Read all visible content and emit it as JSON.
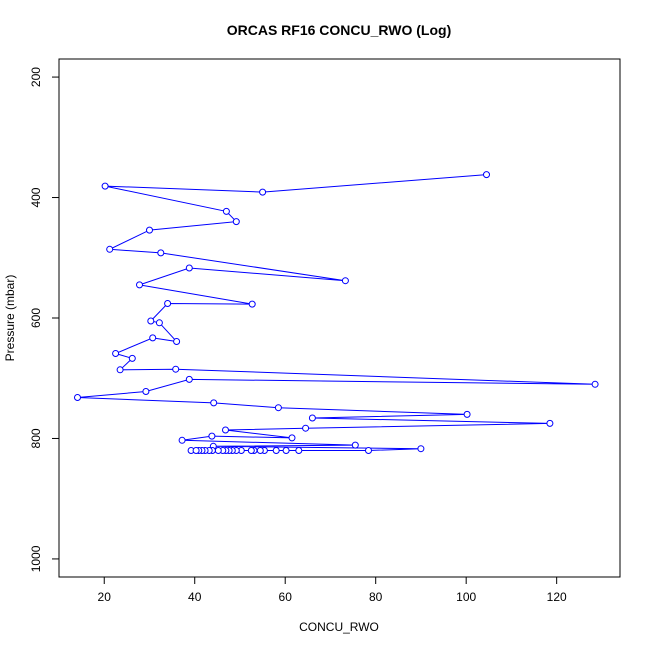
{
  "chart_data": {
    "type": "line",
    "title": "ORCAS RF16 CONCU_RWO (Log)",
    "xlabel": "CONCU_RWO",
    "ylabel": "Pressure (mbar)",
    "xlim": [
      10,
      134
    ],
    "ylim": [
      1030,
      170
    ],
    "y_reversed": true,
    "grid": false,
    "x_ticks": [
      20,
      40,
      60,
      80,
      100,
      120
    ],
    "y_ticks": [
      200,
      400,
      600,
      800,
      1000
    ],
    "colors": {
      "series": "#0000ff",
      "axis": "#000000",
      "background": "#ffffff"
    },
    "series": [
      {
        "x": [
          104.5,
          55,
          20.2,
          47,
          49.2,
          30,
          21.2,
          32.5,
          73.3,
          38.8,
          27.8,
          52.7,
          34,
          30.3,
          32.2,
          36,
          30.7,
          22.5,
          26.2,
          23.5,
          35.8,
          128.5,
          38.8,
          29.2,
          14.1,
          44.2,
          58.5,
          100.2,
          66,
          118.5,
          64.5,
          46.8,
          61.5,
          43.8,
          37.2,
          75.5,
          44.1,
          90,
          78.4,
          39.2,
          63,
          60.2,
          58,
          55.4,
          54.5,
          53.1,
          52.5,
          50.3,
          49.2,
          48.3,
          47.6,
          46.9,
          46.2,
          45.2,
          43.9,
          43.2,
          42.3,
          41.6,
          40.9,
          40.3
        ],
        "y": [
          362,
          391,
          381,
          423,
          440,
          454,
          486,
          492,
          538,
          517,
          545,
          577,
          576,
          605,
          608,
          639,
          633,
          659,
          667,
          686,
          685,
          710,
          702,
          722,
          732,
          741,
          749,
          760,
          766,
          775,
          783,
          786,
          799,
          796,
          803,
          811,
          813,
          817,
          820,
          820,
          820,
          820,
          820,
          820,
          820,
          820,
          820,
          820,
          820,
          820,
          820,
          820,
          820,
          820,
          820,
          820,
          820,
          820,
          820,
          820
        ]
      }
    ]
  }
}
